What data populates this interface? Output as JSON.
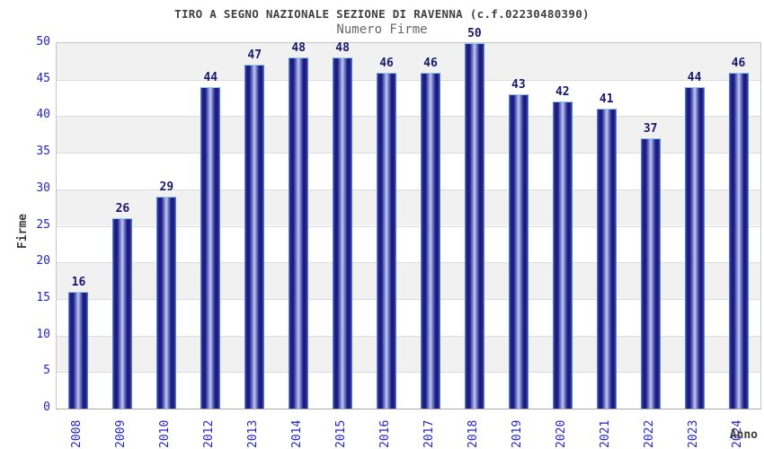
{
  "chart_data": {
    "type": "bar",
    "title": "TIRO A SEGNO NAZIONALE SEZIONE DI RAVENNA (c.f.02230480390)",
    "subtitle": "Numero Firme",
    "xlabel": "Anno",
    "ylabel": "Firme",
    "categories": [
      "2008",
      "2009",
      "2010",
      "2012",
      "2013",
      "2014",
      "2015",
      "2016",
      "2017",
      "2018",
      "2019",
      "2020",
      "2021",
      "2022",
      "2023",
      "2024"
    ],
    "values": [
      16,
      26,
      29,
      44,
      47,
      48,
      48,
      46,
      46,
      50,
      43,
      42,
      41,
      37,
      44,
      46
    ],
    "ylim": [
      0,
      50
    ],
    "ytick_step": 5,
    "grid": true,
    "legend": "none",
    "bar_value_labels": true,
    "colors": {
      "axis_text": "#2424cc",
      "value_text": "#18186e",
      "title_text": "#3f3f3f",
      "subtitle_text": "#666666",
      "band": "#f1f1f1",
      "gridline": "#dcdcdc",
      "plot_border": "#c6c6c6",
      "bar_dark": "#1b1b80",
      "bar_mid": "#7a84d0",
      "bar_light": "#c2cbf2",
      "bar_edge": "#4343a8",
      "bar_border": "#4a86d2",
      "bar_border_top": "#8fc8f2"
    }
  }
}
